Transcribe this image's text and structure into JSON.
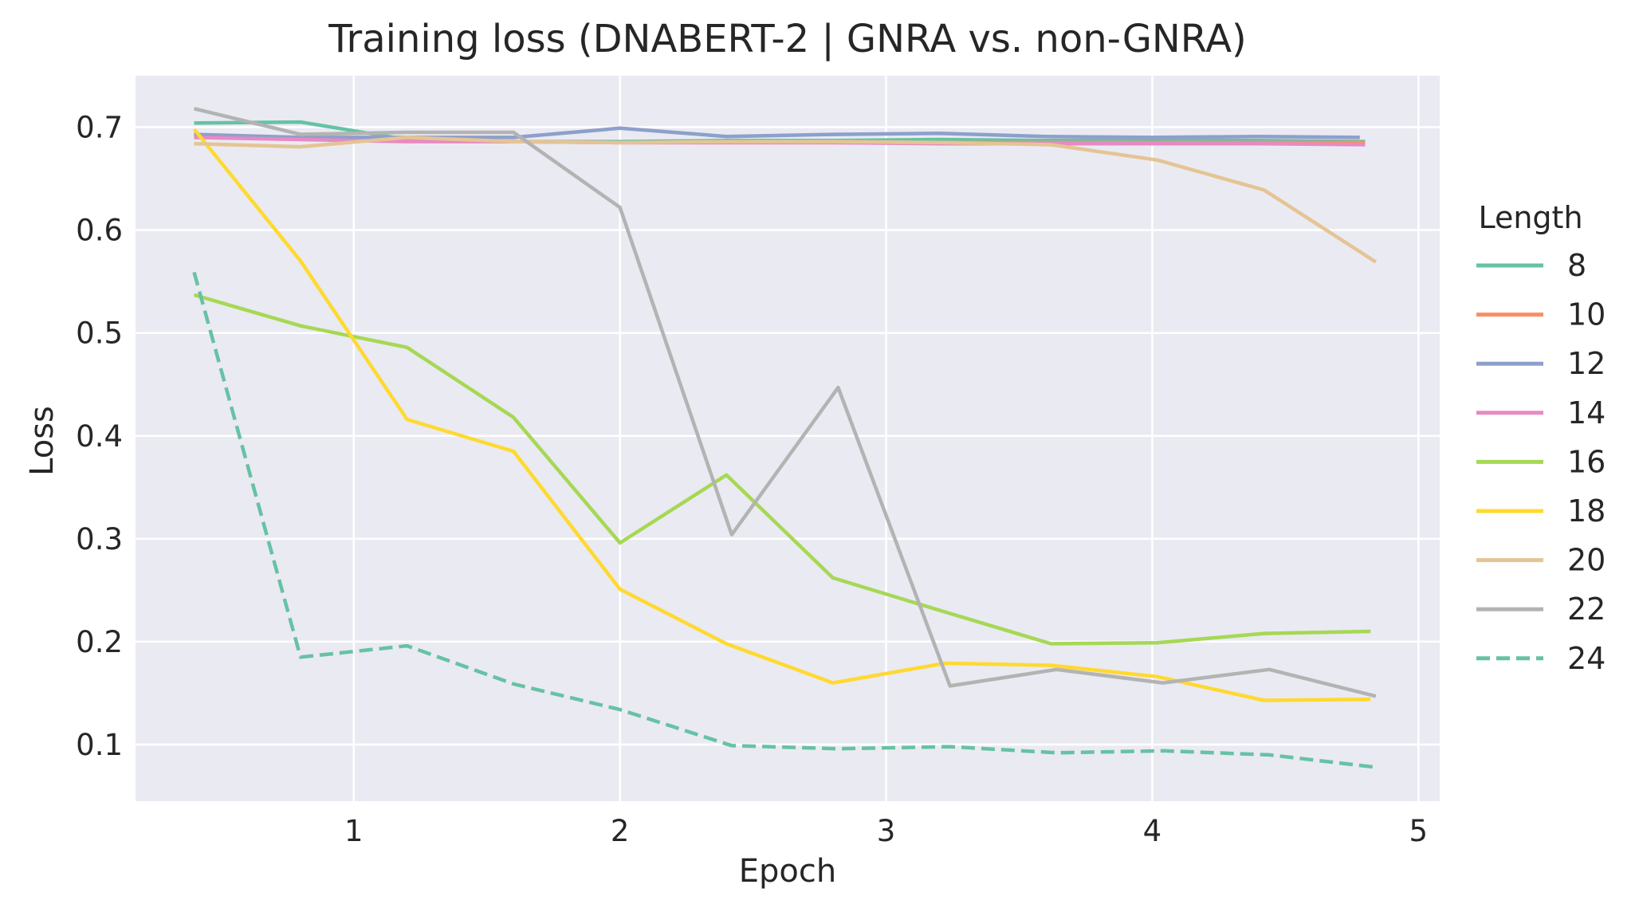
{
  "chart_data": {
    "type": "line",
    "title": "Training loss (DNABERT-2 | GNRA vs. non-GNRA)",
    "xlabel": "Epoch",
    "ylabel": "Loss",
    "xlim": [
      0.18,
      5.08
    ],
    "ylim": [
      0.045,
      0.75
    ],
    "xticks": [
      1,
      2,
      3,
      4,
      5
    ],
    "yticks": [
      0.1,
      0.2,
      0.3,
      0.4,
      0.5,
      0.6,
      0.7
    ],
    "grid": true,
    "background": "#eaeaf2",
    "legend": {
      "title": "Length",
      "placement": "right-outside"
    },
    "series": [
      {
        "name": "8",
        "color": "#66c2a5",
        "dash": false,
        "x": [
          0.4,
          0.8,
          1.2,
          1.6,
          2.0,
          2.4,
          2.8,
          3.2,
          3.6,
          4.0,
          4.4,
          4.8
        ],
        "y": [
          0.704,
          0.705,
          0.688,
          0.686,
          0.686,
          0.687,
          0.687,
          0.688,
          0.687,
          0.687,
          0.687,
          0.686
        ]
      },
      {
        "name": "10",
        "color": "#fc8d62",
        "dash": false,
        "x": [
          0.4,
          0.8,
          1.2,
          1.6,
          2.0,
          2.4,
          2.8,
          3.2,
          3.6,
          4.0,
          4.4,
          4.8
        ],
        "y": [
          0.69,
          0.689,
          0.687,
          0.686,
          0.685,
          0.685,
          0.685,
          0.685,
          0.685,
          0.685,
          0.685,
          0.685
        ]
      },
      {
        "name": "12",
        "color": "#8da0cb",
        "dash": false,
        "x": [
          0.4,
          0.8,
          1.2,
          1.6,
          2.0,
          2.4,
          2.8,
          3.2,
          3.6,
          4.0,
          4.4,
          4.78
        ],
        "y": [
          0.693,
          0.69,
          0.69,
          0.69,
          0.699,
          0.691,
          0.693,
          0.694,
          0.691,
          0.69,
          0.691,
          0.69
        ]
      },
      {
        "name": "14",
        "color": "#e78ac3",
        "dash": false,
        "x": [
          0.4,
          0.8,
          1.2,
          1.6,
          2.0,
          2.4,
          2.8,
          3.2,
          3.6,
          4.0,
          4.4,
          4.8
        ],
        "y": [
          0.69,
          0.688,
          0.686,
          0.686,
          0.685,
          0.685,
          0.685,
          0.684,
          0.684,
          0.684,
          0.684,
          0.683
        ]
      },
      {
        "name": "16",
        "color": "#a6d854",
        "dash": false,
        "x": [
          0.4,
          0.8,
          1.2,
          1.6,
          2.0,
          2.4,
          2.8,
          3.22,
          3.62,
          4.02,
          4.42,
          4.82
        ],
        "y": [
          0.537,
          0.507,
          0.486,
          0.418,
          0.296,
          0.362,
          0.262,
          0.229,
          0.198,
          0.199,
          0.208,
          0.21
        ]
      },
      {
        "name": "18",
        "color": "#ffd92f",
        "dash": false,
        "x": [
          0.4,
          0.8,
          1.2,
          1.6,
          2.0,
          2.4,
          2.8,
          3.22,
          3.62,
          4.02,
          4.42,
          4.82
        ],
        "y": [
          0.698,
          0.57,
          0.416,
          0.385,
          0.251,
          0.198,
          0.16,
          0.179,
          0.177,
          0.166,
          0.143,
          0.144
        ]
      },
      {
        "name": "20",
        "color": "#e5c494",
        "dash": false,
        "x": [
          0.4,
          0.8,
          1.2,
          1.6,
          2.0,
          2.4,
          2.8,
          3.22,
          3.62,
          4.02,
          4.42,
          4.84
        ],
        "y": [
          0.684,
          0.681,
          0.69,
          0.686,
          0.685,
          0.686,
          0.686,
          0.685,
          0.683,
          0.668,
          0.639,
          0.569
        ]
      },
      {
        "name": "22",
        "color": "#b3b3b3",
        "dash": false,
        "x": [
          0.4,
          0.8,
          1.2,
          1.6,
          2.0,
          2.42,
          2.82,
          3.24,
          3.64,
          4.04,
          4.44,
          4.84
        ],
        "y": [
          0.718,
          0.693,
          0.695,
          0.695,
          0.622,
          0.304,
          0.447,
          0.157,
          0.173,
          0.16,
          0.173,
          0.147
        ]
      },
      {
        "name": "24",
        "color": "#66c2a5",
        "dash": true,
        "x": [
          0.4,
          0.8,
          1.2,
          1.6,
          2.0,
          2.42,
          2.82,
          3.24,
          3.64,
          4.04,
          4.44,
          4.84
        ],
        "y": [
          0.559,
          0.185,
          0.196,
          0.159,
          0.134,
          0.099,
          0.096,
          0.098,
          0.092,
          0.094,
          0.09,
          0.078
        ]
      }
    ]
  }
}
